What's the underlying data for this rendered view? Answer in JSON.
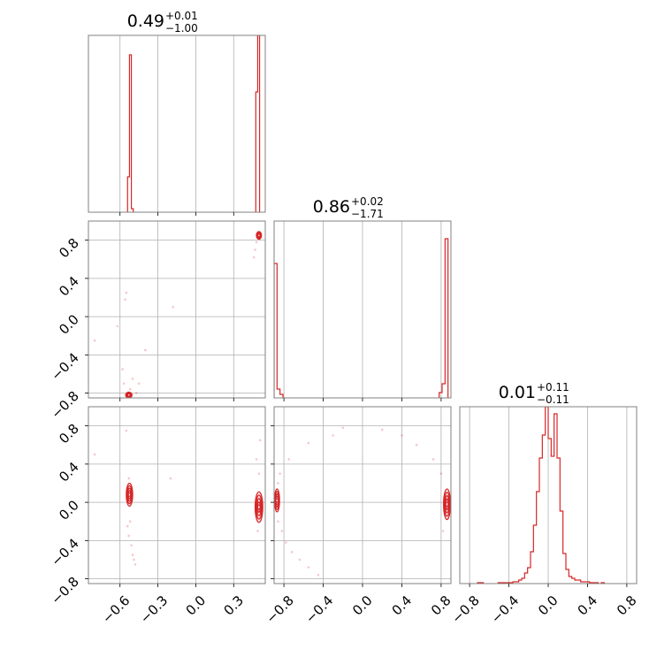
{
  "colors": {
    "series": "#d62728",
    "grid": "#b0b0b0",
    "frame": "#808080"
  },
  "chart_data": {
    "type": "corner",
    "style": {
      "grid": true,
      "contour_color": "#d62728",
      "hist_color": "#d62728"
    },
    "panels": [
      {
        "type": "histogram",
        "row": 0,
        "col": 0,
        "title": {
          "value": "0.49",
          "plus": "+0.01",
          "minus": "−1.00"
        },
        "xlim": [
          -0.85,
          0.55
        ],
        "ylim": [
          0,
          1.0
        ],
        "x_ticks": [
          -0.6,
          -0.3,
          0.0,
          0.3
        ],
        "x_tick_labels": [],
        "bins": [
          {
            "x0": -0.54,
            "x1": -0.525,
            "h": 0.2
          },
          {
            "x0": -0.525,
            "x1": -0.51,
            "h": 0.89
          },
          {
            "x0": -0.51,
            "x1": -0.495,
            "h": 0.02
          },
          {
            "x0": 0.475,
            "x1": 0.49,
            "h": 0.68
          },
          {
            "x0": 0.49,
            "x1": 0.505,
            "h": 1.0
          }
        ]
      },
      {
        "type": "histogram",
        "row": 1,
        "col": 1,
        "title": {
          "value": "0.86",
          "plus": "+0.02",
          "minus": "−1.71"
        },
        "xlim": [
          -0.9,
          0.9
        ],
        "ylim": [
          0,
          1.0
        ],
        "x_ticks": [
          -0.8,
          -0.4,
          0.0,
          0.4,
          0.8
        ],
        "x_tick_labels": [],
        "bins": [
          {
            "x0": -0.9,
            "x1": -0.87,
            "h": 0.76
          },
          {
            "x0": -0.87,
            "x1": -0.84,
            "h": 0.05
          },
          {
            "x0": -0.84,
            "x1": -0.81,
            "h": 0.02
          },
          {
            "x0": 0.78,
            "x1": 0.81,
            "h": 0.03
          },
          {
            "x0": 0.81,
            "x1": 0.84,
            "h": 0.08
          },
          {
            "x0": 0.84,
            "x1": 0.87,
            "h": 0.9
          }
        ]
      },
      {
        "type": "histogram",
        "row": 2,
        "col": 2,
        "title": {
          "value": "0.01",
          "plus": "+0.11",
          "minus": "−0.11"
        },
        "xlim": [
          -0.9,
          0.9
        ],
        "ylim": [
          0,
          1.0
        ],
        "x_ticks": [
          -0.8,
          -0.4,
          0.0,
          0.4,
          0.8
        ],
        "x_tick_labels": [
          "−0.8",
          "−0.4",
          "0.0",
          "0.4",
          "0.8"
        ],
        "bins": [
          {
            "x0": -0.72,
            "x1": -0.69,
            "h": 0.005
          },
          {
            "x0": -0.69,
            "x1": -0.66,
            "h": 0.005
          },
          {
            "x0": -0.51,
            "x1": -0.48,
            "h": 0.005
          },
          {
            "x0": -0.48,
            "x1": -0.45,
            "h": 0.005
          },
          {
            "x0": -0.45,
            "x1": -0.42,
            "h": 0.005
          },
          {
            "x0": -0.42,
            "x1": -0.39,
            "h": 0.005
          },
          {
            "x0": -0.39,
            "x1": -0.36,
            "h": 0.005
          },
          {
            "x0": -0.36,
            "x1": -0.33,
            "h": 0.01
          },
          {
            "x0": -0.33,
            "x1": -0.3,
            "h": 0.01
          },
          {
            "x0": -0.3,
            "x1": -0.27,
            "h": 0.02
          },
          {
            "x0": -0.27,
            "x1": -0.24,
            "h": 0.03
          },
          {
            "x0": -0.24,
            "x1": -0.21,
            "h": 0.06
          },
          {
            "x0": -0.21,
            "x1": -0.18,
            "h": 0.09
          },
          {
            "x0": -0.18,
            "x1": -0.15,
            "h": 0.18
          },
          {
            "x0": -0.15,
            "x1": -0.12,
            "h": 0.33
          },
          {
            "x0": -0.12,
            "x1": -0.09,
            "h": 0.52
          },
          {
            "x0": -0.09,
            "x1": -0.06,
            "h": 0.71
          },
          {
            "x0": -0.06,
            "x1": -0.03,
            "h": 0.84
          },
          {
            "x0": -0.03,
            "x1": 0.0,
            "h": 1.0
          },
          {
            "x0": 0.0,
            "x1": 0.03,
            "h": 0.82
          },
          {
            "x0": 0.03,
            "x1": 0.06,
            "h": 0.72
          },
          {
            "x0": 0.06,
            "x1": 0.09,
            "h": 0.96
          },
          {
            "x0": 0.09,
            "x1": 0.12,
            "h": 0.71
          },
          {
            "x0": 0.12,
            "x1": 0.15,
            "h": 0.41
          },
          {
            "x0": 0.15,
            "x1": 0.18,
            "h": 0.17
          },
          {
            "x0": 0.18,
            "x1": 0.21,
            "h": 0.08
          },
          {
            "x0": 0.21,
            "x1": 0.24,
            "h": 0.04
          },
          {
            "x0": 0.24,
            "x1": 0.27,
            "h": 0.03
          },
          {
            "x0": 0.27,
            "x1": 0.3,
            "h": 0.02
          },
          {
            "x0": 0.3,
            "x1": 0.33,
            "h": 0.02
          },
          {
            "x0": 0.33,
            "x1": 0.36,
            "h": 0.01
          },
          {
            "x0": 0.36,
            "x1": 0.39,
            "h": 0.01
          },
          {
            "x0": 0.39,
            "x1": 0.42,
            "h": 0.01
          },
          {
            "x0": 0.42,
            "x1": 0.45,
            "h": 0.005
          },
          {
            "x0": 0.45,
            "x1": 0.48,
            "h": 0.005
          },
          {
            "x0": 0.48,
            "x1": 0.51,
            "h": 0.005
          },
          {
            "x0": 0.54,
            "x1": 0.57,
            "h": 0.005
          }
        ]
      },
      {
        "type": "scatter2d",
        "row": 1,
        "col": 0,
        "xlim": [
          -0.85,
          0.55
        ],
        "ylim": [
          -0.85,
          1.0
        ],
        "x_ticks": [
          -0.6,
          -0.3,
          0.0,
          0.3
        ],
        "x_tick_labels": [],
        "y_ticks": [
          -0.8,
          -0.4,
          0.0,
          0.4,
          0.8
        ],
        "y_tick_labels": [
          "−0.8",
          "−0.4",
          "0.0",
          "0.4",
          "0.8"
        ],
        "clusters": [
          {
            "x": -0.53,
            "y": -0.82,
            "rx": 0.025,
            "ry": 0.03,
            "level": "contour"
          },
          {
            "x": 0.5,
            "y": 0.85,
            "rx": 0.02,
            "ry": 0.04,
            "level": "contour"
          }
        ],
        "points": [
          [
            -0.55,
            0.25
          ],
          [
            -0.56,
            0.18
          ],
          [
            -0.18,
            0.1
          ],
          [
            -0.62,
            -0.1
          ],
          [
            -0.58,
            -0.55
          ],
          [
            -0.45,
            -0.7
          ],
          [
            -0.52,
            -0.76
          ],
          [
            -0.57,
            -0.7
          ],
          [
            0.47,
            0.7
          ],
          [
            0.46,
            0.62
          ],
          [
            0.48,
            0.78
          ],
          [
            -0.8,
            -0.25
          ],
          [
            -0.4,
            -0.35
          ],
          [
            -0.5,
            -0.65
          ],
          [
            -0.47,
            -0.8
          ]
        ]
      },
      {
        "type": "scatter2d",
        "row": 2,
        "col": 0,
        "xlim": [
          -0.85,
          0.55
        ],
        "ylim": [
          -0.85,
          1.0
        ],
        "x_ticks": [
          -0.6,
          -0.3,
          0.0,
          0.3
        ],
        "x_tick_labels": [
          "−0.6",
          "−0.3",
          "0.0",
          "0.3"
        ],
        "y_ticks": [
          -0.8,
          -0.4,
          0.0,
          0.4,
          0.8
        ],
        "y_tick_labels": [
          "−0.8",
          "−0.4",
          "0.0",
          "0.4",
          "0.8"
        ],
        "clusters": [
          {
            "x": -0.525,
            "y": 0.08,
            "rx": 0.025,
            "ry": 0.12,
            "level": "contour"
          },
          {
            "x": 0.5,
            "y": -0.05,
            "rx": 0.03,
            "ry": 0.16,
            "level": "contour"
          }
        ],
        "points": [
          [
            -0.53,
            0.25
          ],
          [
            -0.52,
            -0.2
          ],
          [
            -0.53,
            -0.35
          ],
          [
            -0.51,
            -0.45
          ],
          [
            -0.5,
            -0.55
          ],
          [
            -0.48,
            -0.65
          ],
          [
            -0.55,
            0.75
          ],
          [
            -0.8,
            0.5
          ],
          [
            -0.2,
            0.25
          ],
          [
            0.48,
            0.45
          ],
          [
            0.5,
            0.3
          ],
          [
            0.49,
            -0.3
          ],
          [
            0.51,
            0.65
          ],
          [
            -0.54,
            -0.25
          ],
          [
            -0.49,
            -0.6
          ]
        ]
      },
      {
        "type": "scatter2d",
        "row": 2,
        "col": 1,
        "xlim": [
          -0.9,
          0.9
        ],
        "ylim": [
          -0.85,
          1.0
        ],
        "x_ticks": [
          -0.8,
          -0.4,
          0.0,
          0.4,
          0.8
        ],
        "x_tick_labels": [
          "−0.8",
          "−0.4",
          "0.0",
          "0.4",
          "0.8"
        ],
        "y_ticks": [
          -0.8,
          -0.4,
          0.0,
          0.4,
          0.8
        ],
        "y_tick_labels": [],
        "clusters": [
          {
            "x": 0.86,
            "y": -0.02,
            "rx": 0.035,
            "ry": 0.16,
            "level": "contour"
          },
          {
            "x": -0.87,
            "y": 0.02,
            "rx": 0.025,
            "ry": 0.12,
            "level": "contour"
          }
        ],
        "points": [
          [
            -0.82,
            -0.3
          ],
          [
            -0.78,
            -0.42
          ],
          [
            -0.72,
            -0.52
          ],
          [
            -0.64,
            -0.6
          ],
          [
            -0.55,
            -0.68
          ],
          [
            -0.45,
            -0.76
          ],
          [
            -0.84,
            0.3
          ],
          [
            -0.75,
            0.45
          ],
          [
            -0.55,
            0.62
          ],
          [
            -0.2,
            0.78
          ],
          [
            0.2,
            0.76
          ],
          [
            0.55,
            0.6
          ],
          [
            0.72,
            0.45
          ],
          [
            0.8,
            0.3
          ],
          [
            0.82,
            -0.3
          ],
          [
            -0.3,
            0.7
          ],
          [
            0.4,
            0.7
          ],
          [
            -0.86,
            0.2
          ],
          [
            -0.86,
            -0.2
          ]
        ]
      }
    ]
  }
}
